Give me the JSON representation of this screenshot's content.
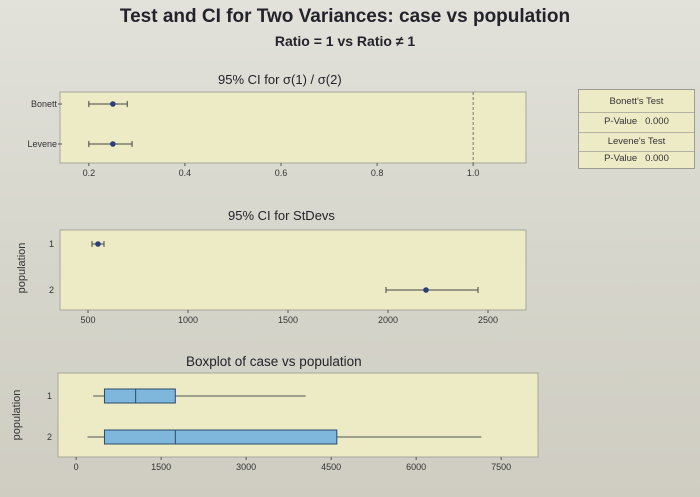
{
  "header": {
    "title": "Test and CI for Two Variances: case vs population",
    "subtitle": "Ratio = 1 vs Ratio ≠ 1"
  },
  "results_box": {
    "bonett_label": "Bonett's Test",
    "bonett_pvalue": "P-Value   0.000",
    "levene_label": "Levene's Test",
    "levene_pvalue": "P-Value   0.000"
  },
  "chart_data": [
    {
      "type": "interval",
      "title": "95% CI for σ(1) / σ(2)",
      "categories": [
        "Bonett",
        "Levene"
      ],
      "intervals": [
        {
          "name": "Bonett",
          "low": 0.2,
          "point": 0.25,
          "high": 0.28
        },
        {
          "name": "Levene",
          "low": 0.2,
          "point": 0.25,
          "high": 0.29
        }
      ],
      "reference_line": 1.0,
      "xlim": [
        0.14,
        1.11
      ],
      "xticks": [
        "0.2",
        "0.4",
        "0.6",
        "0.8",
        "1.0"
      ],
      "xtick_values": [
        0.2,
        0.4,
        0.6,
        0.8,
        1.0
      ]
    },
    {
      "type": "interval",
      "title": "95% CI for StDevs",
      "ylabel": "population",
      "categories": [
        "1",
        "2"
      ],
      "intervals": [
        {
          "name": "1",
          "low": 520,
          "point": 550,
          "high": 580
        },
        {
          "name": "2",
          "low": 1990,
          "point": 2190,
          "high": 2450
        }
      ],
      "xlim": [
        360,
        2690
      ],
      "xticks": [
        "500",
        "1000",
        "1500",
        "2000",
        "2500"
      ],
      "xtick_values": [
        500,
        1000,
        1500,
        2000,
        2500
      ]
    },
    {
      "type": "boxplot",
      "title": "Boxplot of case vs population",
      "ylabel": "population",
      "categories": [
        "1",
        "2"
      ],
      "boxes": [
        {
          "name": "1",
          "whisker_low": 300,
          "q1": 500,
          "median": 1050,
          "q3": 1750,
          "whisker_high": 4050
        },
        {
          "name": "2",
          "whisker_low": 200,
          "q1": 500,
          "median": 1750,
          "q3": 4600,
          "whisker_high": 7150
        }
      ],
      "xlim": [
        -320,
        8150
      ],
      "xticks": [
        "0",
        "1500",
        "3000",
        "4500",
        "6000",
        "7500"
      ],
      "xtick_values": [
        0,
        1500,
        3000,
        4500,
        6000,
        7500
      ]
    }
  ],
  "colors": {
    "panel_bg": "#ecebc6",
    "marker": "#2a3f7a",
    "box_fill": "#7fb6dc",
    "box_stroke": "#2c4a6a"
  }
}
